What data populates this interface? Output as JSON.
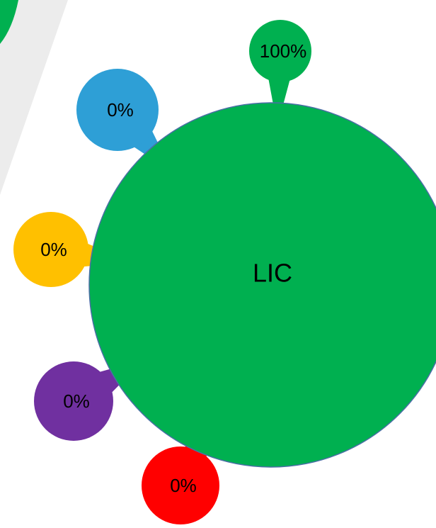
{
  "center": {
    "label": "LIC"
  },
  "petals": [
    {
      "label": "100%"
    },
    {
      "label": "0%"
    },
    {
      "label": "0%"
    },
    {
      "label": "0%"
    },
    {
      "label": "0%"
    }
  ]
}
